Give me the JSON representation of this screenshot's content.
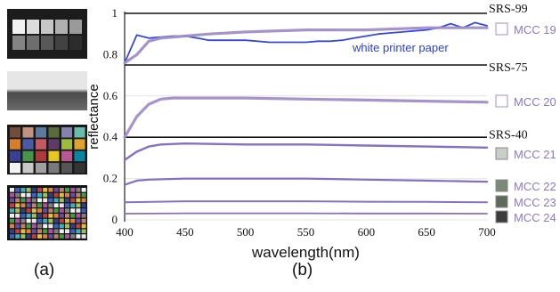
{
  "panels": {
    "a": "(a)",
    "b": "(b)"
  },
  "thumbnails": [
    {
      "name": "grayscale-target-thumbnail",
      "kind": "gray-steps",
      "header_color": "#1c1c1c",
      "patch_colors": [
        "#f2f2f2",
        "#dcdcdc",
        "#c6c6c6",
        "#b0b0b0",
        "#9a9a9a",
        "#848484",
        "#6e6e6e",
        "#585858",
        "#424242",
        "#2c2c2c"
      ]
    },
    {
      "name": "gradient-strip-thumbnail",
      "kind": "gradient",
      "colors": [
        "#e6e6e6",
        "#4a4a4a"
      ]
    },
    {
      "name": "colorchecker-thumbnail",
      "kind": "grid",
      "rows": 4,
      "cols": 6,
      "patch_colors": [
        "#744c3c",
        "#c1947f",
        "#5c7a9c",
        "#5a6c3c",
        "#8482b0",
        "#68bdaa",
        "#d67e2a",
        "#4a5aa6",
        "#c15a62",
        "#5e3a6a",
        "#9cbc3e",
        "#e0a22e",
        "#383f96",
        "#479548",
        "#af3a3b",
        "#e7c71f",
        "#bb5695",
        "#0885a1",
        "#f3f3f2",
        "#c8c8c8",
        "#a0a0a0",
        "#7a7a7a",
        "#555555",
        "#343434"
      ]
    },
    {
      "name": "digital-colorchecker-sg-thumbnail",
      "kind": "grid",
      "rows": 10,
      "cols": 14
    }
  ],
  "chart_data": {
    "type": "line",
    "xlabel": "wavelength(nm)",
    "ylabel": "reflectance",
    "xlim": [
      400,
      700
    ],
    "ylim": [
      0,
      1
    ],
    "xticks": [
      400,
      450,
      500,
      550,
      600,
      650,
      700
    ],
    "yticks": [
      0,
      0.2,
      0.4,
      0.6,
      0.8,
      1
    ],
    "ytick_labels": [
      "0",
      "0.2",
      "0.4",
      "0.6",
      "0.8",
      "1"
    ],
    "reference_lines": [
      {
        "label": "SRS-99",
        "y": 1.0
      },
      {
        "label": "SRS-75",
        "y": 0.75
      },
      {
        "label": "SRS-40",
        "y": 0.4
      }
    ],
    "series": [
      {
        "name": "white printer paper",
        "color": "#2b3ee0",
        "width": 1.8,
        "x": [
          400,
          410,
          420,
          430,
          440,
          450,
          460,
          470,
          480,
          490,
          500,
          510,
          520,
          530,
          540,
          550,
          560,
          570,
          580,
          590,
          600,
          610,
          620,
          630,
          640,
          650,
          660,
          670,
          680,
          690,
          700
        ],
        "y": [
          0.76,
          0.895,
          0.88,
          0.885,
          0.89,
          0.89,
          0.88,
          0.87,
          0.87,
          0.87,
          0.87,
          0.865,
          0.86,
          0.86,
          0.86,
          0.86,
          0.865,
          0.865,
          0.87,
          0.88,
          0.89,
          0.9,
          0.905,
          0.91,
          0.915,
          0.92,
          0.93,
          0.95,
          0.93,
          0.955,
          0.94
        ]
      },
      {
        "name": "MCC 19",
        "color": "#a08ec8",
        "width": 3.2,
        "x": [
          400,
          410,
          420,
          430,
          440,
          450,
          470,
          500,
          550,
          600,
          650,
          700
        ],
        "y": [
          0.76,
          0.8,
          0.865,
          0.88,
          0.885,
          0.89,
          0.9,
          0.91,
          0.92,
          0.92,
          0.93,
          0.93
        ]
      },
      {
        "name": "MCC 20",
        "color": "#a08ec8",
        "width": 3.2,
        "x": [
          400,
          410,
          420,
          430,
          440,
          450,
          500,
          550,
          600,
          650,
          700
        ],
        "y": [
          0.4,
          0.5,
          0.56,
          0.585,
          0.59,
          0.59,
          0.59,
          0.585,
          0.58,
          0.575,
          0.57
        ]
      },
      {
        "name": "MCC 21",
        "color": "#8068c0",
        "width": 2.4,
        "x": [
          400,
          410,
          420,
          430,
          450,
          500,
          550,
          600,
          650,
          700
        ],
        "y": [
          0.29,
          0.33,
          0.355,
          0.365,
          0.37,
          0.365,
          0.365,
          0.36,
          0.355,
          0.35
        ]
      },
      {
        "name": "MCC 22",
        "color": "#8068c0",
        "width": 2.2,
        "x": [
          400,
          410,
          420,
          450,
          500,
          550,
          600,
          650,
          700
        ],
        "y": [
          0.17,
          0.19,
          0.195,
          0.2,
          0.2,
          0.2,
          0.195,
          0.19,
          0.185
        ]
      },
      {
        "name": "MCC 23",
        "color": "#8068c0",
        "width": 2.0,
        "x": [
          400,
          450,
          500,
          550,
          600,
          650,
          700
        ],
        "y": [
          0.085,
          0.09,
          0.09,
          0.09,
          0.088,
          0.087,
          0.085
        ]
      },
      {
        "name": "MCC 24",
        "color": "#8068c0",
        "width": 1.8,
        "x": [
          400,
          450,
          500,
          550,
          600,
          650,
          700
        ],
        "y": [
          0.03,
          0.032,
          0.032,
          0.032,
          0.031,
          0.031,
          0.03
        ]
      }
    ],
    "annotations": [
      {
        "text": "white printer paper",
        "color": "#2b3ee0"
      }
    ],
    "legend": [
      {
        "label": "MCC 19",
        "swatch": "#ffffff"
      },
      {
        "label": "MCC 20",
        "swatch": "#ffffff"
      },
      {
        "label": "MCC 21",
        "swatch": "#c9cec9"
      },
      {
        "label": "MCC 22",
        "swatch": "#7a8a76"
      },
      {
        "label": "MCC 23",
        "swatch": "#5e6a5a"
      },
      {
        "label": "MCC 24",
        "swatch": "#3c3c3c"
      }
    ],
    "legend_text_color": "#8a7ac8"
  }
}
